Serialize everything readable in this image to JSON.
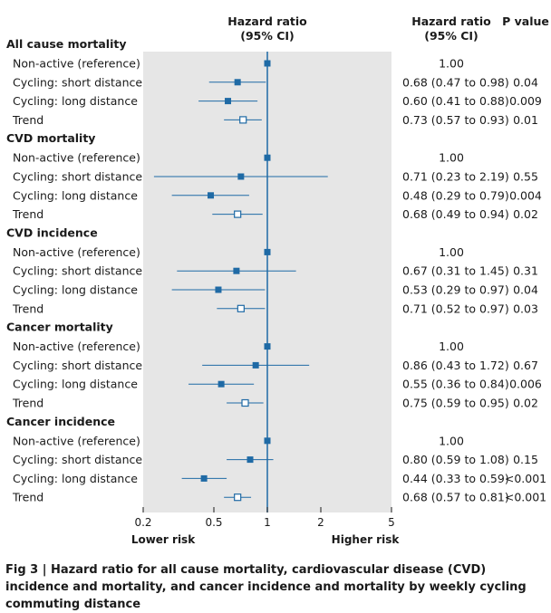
{
  "chart_data": {
    "type": "forest",
    "scale": "log",
    "xlim": [
      0.2,
      5
    ],
    "ticks": [
      {
        "value": 0.2,
        "label": "0.2"
      },
      {
        "value": 0.5,
        "label": "0.5"
      },
      {
        "value": 1,
        "label": "1"
      },
      {
        "value": 2,
        "label": "2"
      },
      {
        "value": 5,
        "label": "5"
      }
    ],
    "reference_value": 1,
    "axis_title": "Hazard ratio\n(95% CI)",
    "hr_column_title": "Hazard ratio\n(95% CI)",
    "p_column_title": "P value",
    "lower_label": "Lower risk",
    "higher_label": "Higher risk",
    "groups": [
      {
        "name": "All cause mortality",
        "rows": [
          {
            "label": "Non-active (reference)",
            "hr": 1.0,
            "lo": null,
            "hi": null,
            "marker": "filled",
            "hr_text": "1.00",
            "p": ""
          },
          {
            "label": "Cycling: short distance",
            "hr": 0.68,
            "lo": 0.47,
            "hi": 0.98,
            "marker": "filled",
            "hr_text": "0.68 (0.47 to 0.98)",
            "p": "0.04"
          },
          {
            "label": "Cycling: long distance",
            "hr": 0.6,
            "lo": 0.41,
            "hi": 0.88,
            "marker": "filled",
            "hr_text": "0.60 (0.41 to 0.88)",
            "p": "0.009"
          },
          {
            "label": "Trend",
            "hr": 0.73,
            "lo": 0.57,
            "hi": 0.93,
            "marker": "open",
            "hr_text": "0.73 (0.57 to 0.93)",
            "p": "0.01"
          }
        ]
      },
      {
        "name": "CVD mortality",
        "rows": [
          {
            "label": "Non-active (reference)",
            "hr": 1.0,
            "lo": null,
            "hi": null,
            "marker": "filled",
            "hr_text": "1.00",
            "p": ""
          },
          {
            "label": "Cycling: short distance",
            "hr": 0.71,
            "lo": 0.23,
            "hi": 2.19,
            "marker": "filled",
            "hr_text": "0.71 (0.23 to 2.19)",
            "p": "0.55"
          },
          {
            "label": "Cycling: long distance",
            "hr": 0.48,
            "lo": 0.29,
            "hi": 0.79,
            "marker": "filled",
            "hr_text": "0.48 (0.29 to 0.79)",
            "p": "0.004"
          },
          {
            "label": "Trend",
            "hr": 0.68,
            "lo": 0.49,
            "hi": 0.94,
            "marker": "open",
            "hr_text": "0.68 (0.49 to 0.94)",
            "p": "0.02"
          }
        ]
      },
      {
        "name": "CVD incidence",
        "rows": [
          {
            "label": "Non-active (reference)",
            "hr": 1.0,
            "lo": null,
            "hi": null,
            "marker": "filled",
            "hr_text": "1.00",
            "p": ""
          },
          {
            "label": "Cycling: short distance",
            "hr": 0.67,
            "lo": 0.31,
            "hi": 1.45,
            "marker": "filled",
            "hr_text": "0.67 (0.31 to 1.45)",
            "p": "0.31"
          },
          {
            "label": "Cycling: long distance",
            "hr": 0.53,
            "lo": 0.29,
            "hi": 0.97,
            "marker": "filled",
            "hr_text": "0.53 (0.29 to 0.97)",
            "p": "0.04"
          },
          {
            "label": "Trend",
            "hr": 0.71,
            "lo": 0.52,
            "hi": 0.97,
            "marker": "open",
            "hr_text": "0.71 (0.52 to 0.97)",
            "p": "0.03"
          }
        ]
      },
      {
        "name": "Cancer mortality",
        "rows": [
          {
            "label": "Non-active (reference)",
            "hr": 1.0,
            "lo": null,
            "hi": null,
            "marker": "filled",
            "hr_text": "1.00",
            "p": ""
          },
          {
            "label": "Cycling: short distance",
            "hr": 0.86,
            "lo": 0.43,
            "hi": 1.72,
            "marker": "filled",
            "hr_text": "0.86 (0.43 to 1.72)",
            "p": "0.67"
          },
          {
            "label": "Cycling: long distance",
            "hr": 0.55,
            "lo": 0.36,
            "hi": 0.84,
            "marker": "filled",
            "hr_text": "0.55 (0.36 to 0.84)",
            "p": "0.006"
          },
          {
            "label": "Trend",
            "hr": 0.75,
            "lo": 0.59,
            "hi": 0.95,
            "marker": "open",
            "hr_text": "0.75 (0.59 to 0.95)",
            "p": "0.02"
          }
        ]
      },
      {
        "name": "Cancer incidence",
        "rows": [
          {
            "label": "Non-active (reference)",
            "hr": 1.0,
            "lo": null,
            "hi": null,
            "marker": "filled",
            "hr_text": "1.00",
            "p": ""
          },
          {
            "label": "Cycling: short distance",
            "hr": 0.8,
            "lo": 0.59,
            "hi": 1.08,
            "marker": "filled",
            "hr_text": "0.80 (0.59 to 1.08)",
            "p": "0.15"
          },
          {
            "label": "Cycling: long distance",
            "hr": 0.44,
            "lo": 0.33,
            "hi": 0.59,
            "marker": "filled",
            "hr_text": "0.44 (0.33 to 0.59)",
            "p": "<0.001"
          },
          {
            "label": "Trend",
            "hr": 0.68,
            "lo": 0.57,
            "hi": 0.81,
            "marker": "open",
            "hr_text": "0.68 (0.57 to 0.81)",
            "p": "<0.001"
          }
        ]
      }
    ]
  },
  "caption": {
    "fig_number": "Fig 3",
    "separator": " | ",
    "text": "Hazard ratio for all cause mortality, cardiovascular disease (CVD) incidence and mortality, and cancer incidence and mortality by weekly cycling commuting distance"
  },
  "colors": {
    "panel": "#e6e6e6",
    "accent": "#1f6aa5",
    "text": "#1a1a1a"
  }
}
